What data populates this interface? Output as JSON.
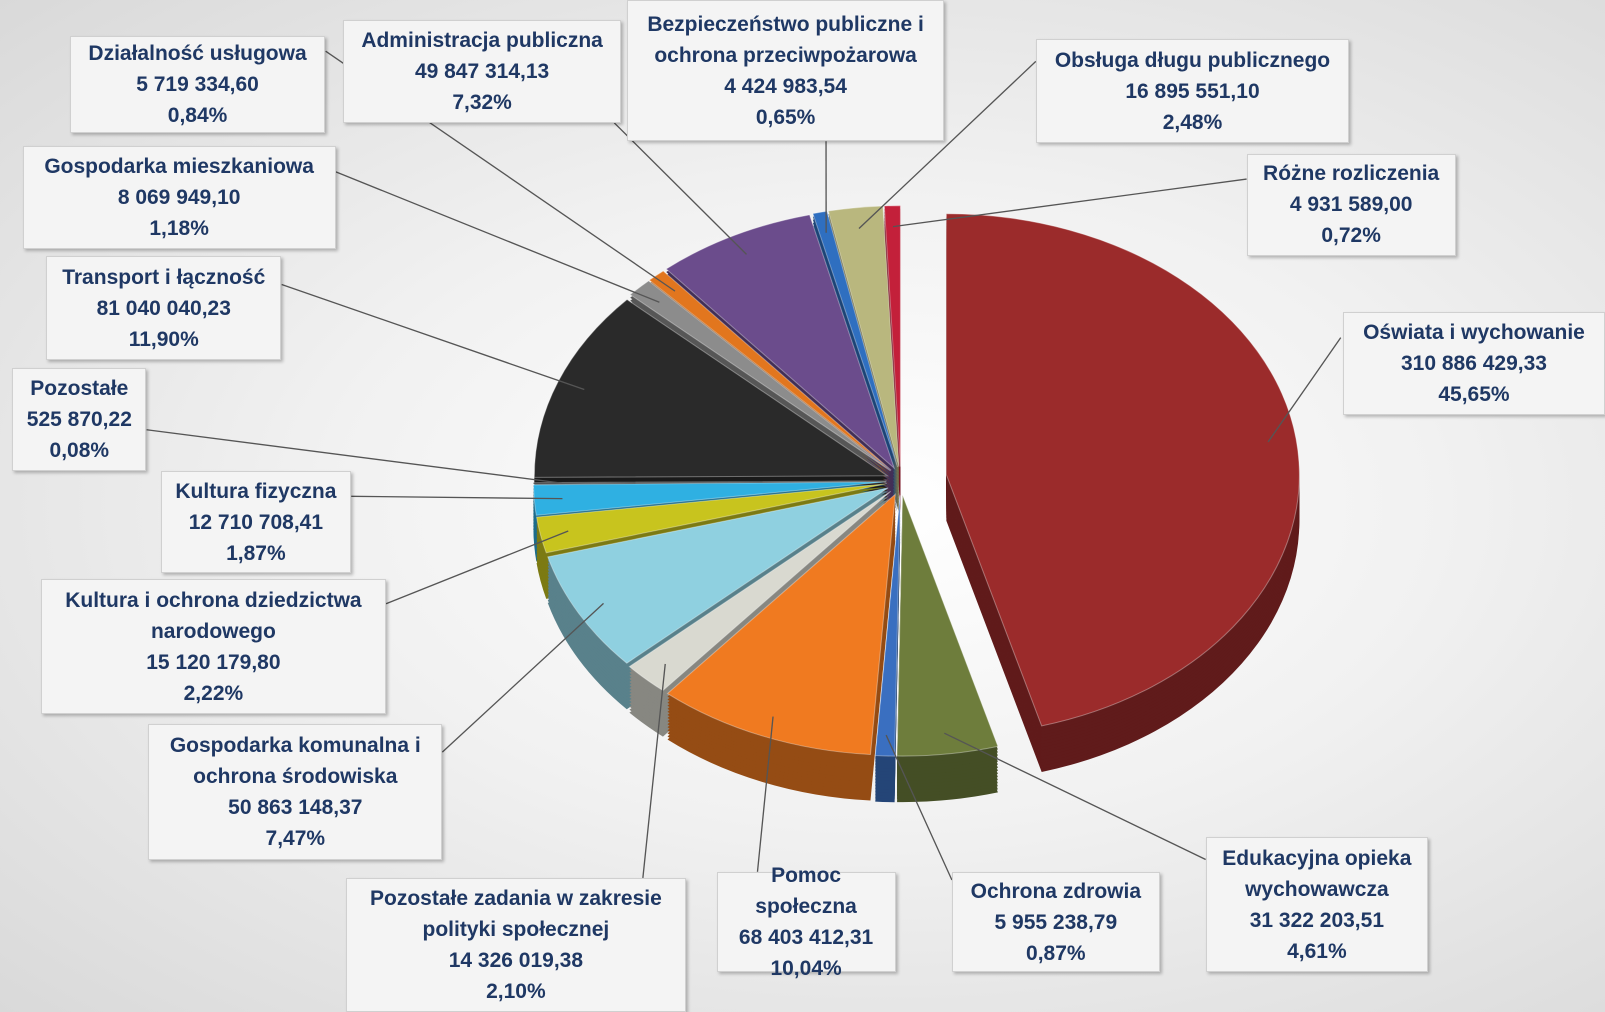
{
  "chart_data": {
    "type": "pie",
    "categories": [
      "Oświata i wychowanie",
      "Edukacyjna opieka wychowawcza",
      "Ochrona zdrowia",
      "Pomoc społeczna",
      "Pozostałe zadania w zakresie polityki społecznej",
      "Gospodarka komunalna i ochrona środowiska",
      "Kultura i ochrona dziedzictwa narodowego",
      "Kultura fizyczna",
      "Pozostałe",
      "Transport i łączność",
      "Gospodarka mieszkaniowa",
      "Działalność usługowa",
      "Administracja publiczna",
      "Bezpieczeństwo publiczne i ochrona przeciwpożarowa",
      "Obsługa długu publicznego",
      "Różne rozliczenia"
    ],
    "values": [
      310886429.33,
      31322203.51,
      5955238.79,
      68403412.31,
      14326019.38,
      50863148.37,
      15120179.8,
      12710708.41,
      525870.22,
      81040040.23,
      8069949.1,
      5719334.6,
      49847314.13,
      4424983.54,
      16895551.1,
      4931589.0
    ],
    "value_labels": [
      "310 886 429,33",
      "31 322 203,51",
      "5 955 238,79",
      "68 403 412,31",
      "14 326 019,38",
      "50 863 148,37",
      "15 120 179,80",
      "12 710 708,41",
      "525 870,22",
      "81 040 040,23",
      "8 069 949,10",
      "5 719 334,60",
      "49 847 314,13",
      "4 424 983,54",
      "16 895 551,10",
      "4 931 589,00"
    ],
    "percentages": [
      45.65,
      4.61,
      0.87,
      10.04,
      2.1,
      7.47,
      2.22,
      1.87,
      0.08,
      11.9,
      1.18,
      0.84,
      7.32,
      0.65,
      2.48,
      0.72
    ],
    "percentage_labels": [
      "45,65%",
      "4,61%",
      "0,87%",
      "10,04%",
      "2,10%",
      "7,47%",
      "2,22%",
      "1,87%",
      "0,08%",
      "11,90%",
      "1,18%",
      "0,84%",
      "7,32%",
      "0,65%",
      "2,48%",
      "0,72%"
    ],
    "colors": [
      "#9b2b2b",
      "#6e7d3c",
      "#3a6fc0",
      "#f07a20",
      "#d9d9d0",
      "#8fd0e0",
      "#c8c41e",
      "#2fb0e2",
      "#111111",
      "#2a2a2a",
      "#8c8c8c",
      "#e2761e",
      "#6b4c8c",
      "#2f6fc0",
      "#b9b77e",
      "#c3203a"
    ]
  }
}
